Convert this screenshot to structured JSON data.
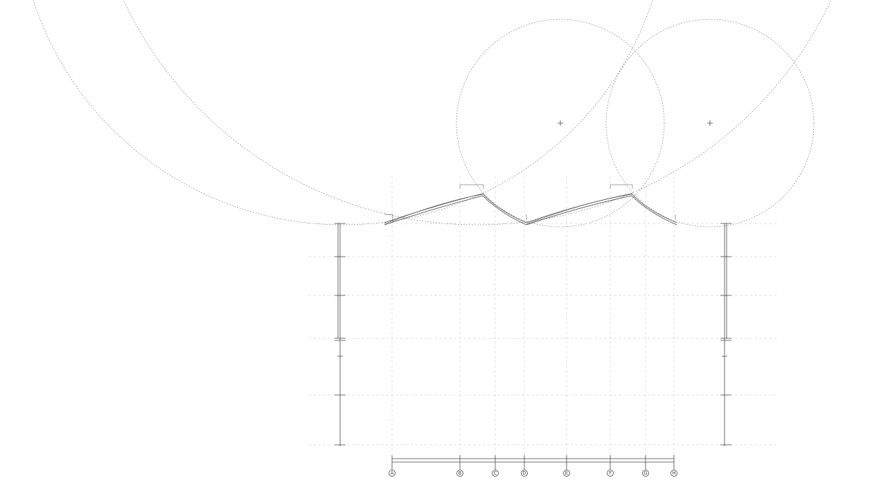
{
  "drawing": {
    "grid_axes": [
      "A",
      "B",
      "C",
      "D",
      "E",
      "F",
      "G",
      "H"
    ],
    "colors": {
      "line": "#444444",
      "grid": "#d8d8d8",
      "background": "#ffffff"
    }
  }
}
